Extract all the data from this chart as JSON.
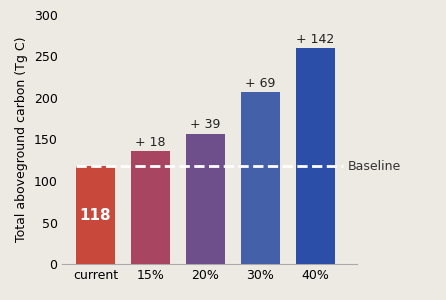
{
  "categories": [
    "current",
    "15%",
    "20%",
    "30%",
    "40%"
  ],
  "values": [
    118,
    136,
    157,
    207,
    260
  ],
  "bar_colors": [
    "#c8483c",
    "#a84560",
    "#6e4f8c",
    "#4460a8",
    "#2b4fa8"
  ],
  "bar_label": "118",
  "bar_label_color": "white",
  "bar_label_fontsize": 11,
  "above_labels": [
    "",
    "+ 18",
    "+ 39",
    "+ 69",
    "+ 142"
  ],
  "above_label_fontsize": 9,
  "baseline": 118,
  "baseline_color": "white",
  "baseline_label": "Baseline",
  "baseline_label_fontsize": 9,
  "ylabel": "Total aboveground carbon (Tg C)",
  "ylabel_fontsize": 9,
  "ylim": [
    0,
    300
  ],
  "yticks": [
    0,
    50,
    100,
    150,
    200,
    250,
    300
  ],
  "xtick_fontsize": 9,
  "ytick_fontsize": 9,
  "background_color": "#ede9e3",
  "axes_background_color": "#ede9e3"
}
